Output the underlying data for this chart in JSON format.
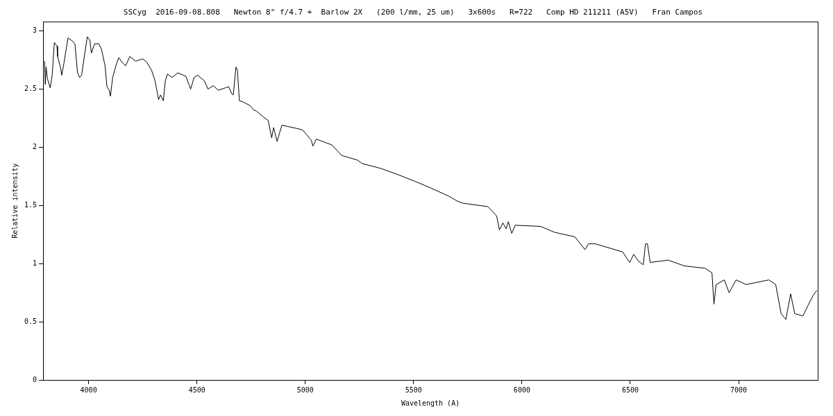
{
  "chart_data": {
    "type": "line",
    "title": "SSCyg  2016-09-08.808   Newton 8\" f/4.7 +  Barlow 2X   (200 l/mm, 25 um)   3x600s   R=722   Comp HD 211211 (A5V)   Fran Campos",
    "xlabel": "Wavelength (A)",
    "ylabel": "Relative intensity",
    "x": [
      3797,
      3800,
      3804,
      3810,
      3823,
      3832,
      3842,
      3854,
      3857,
      3870,
      3876,
      3886,
      3905,
      3921,
      3937,
      3949,
      3959,
      3968,
      3981,
      3994,
      4006,
      4013,
      4028,
      4047,
      4060,
      4076,
      4085,
      4095,
      4101,
      4111,
      4126,
      4139,
      4155,
      4171,
      4190,
      4218,
      4250,
      4269,
      4291,
      4307,
      4323,
      4332,
      4345,
      4354,
      4364,
      4386,
      4411,
      4449,
      4471,
      4487,
      4503,
      4535,
      4551,
      4576,
      4598,
      4630,
      4646,
      4661,
      4668,
      4680,
      4687,
      4696,
      4712,
      4744,
      4763,
      4775,
      4807,
      4829,
      4845,
      4854,
      4870,
      4892,
      4965,
      4987,
      5028,
      5035,
      5051,
      5123,
      5168,
      5240,
      5263,
      5345,
      5421,
      5516,
      5579,
      5662,
      5699,
      5725,
      5842,
      5864,
      5883,
      5896,
      5912,
      5927,
      5937,
      5953,
      5969,
      6086,
      6149,
      6244,
      6291,
      6307,
      6339,
      6465,
      6497,
      6516,
      6538,
      6560,
      6570,
      6579,
      6592,
      6674,
      6750,
      6845,
      6877,
      6886,
      6896,
      6934,
      6956,
      6988,
      7035,
      7139,
      7171,
      7196,
      7218,
      7240,
      7259,
      7297,
      7320,
      7345,
      7361
    ],
    "series": [
      {
        "color": "#000000",
        "values": [
          2.74,
          2.54,
          2.69,
          2.59,
          2.51,
          2.62,
          2.9,
          2.87,
          2.78,
          2.69,
          2.62,
          2.72,
          2.94,
          2.92,
          2.89,
          2.64,
          2.6,
          2.62,
          2.79,
          2.95,
          2.92,
          2.81,
          2.89,
          2.89,
          2.84,
          2.7,
          2.52,
          2.49,
          2.44,
          2.6,
          2.7,
          2.77,
          2.73,
          2.7,
          2.78,
          2.74,
          2.76,
          2.73,
          2.66,
          2.57,
          2.41,
          2.45,
          2.4,
          2.57,
          2.63,
          2.6,
          2.64,
          2.61,
          2.5,
          2.6,
          2.62,
          2.57,
          2.5,
          2.53,
          2.49,
          2.51,
          2.52,
          2.46,
          2.45,
          2.69,
          2.66,
          2.4,
          2.39,
          2.36,
          2.32,
          2.31,
          2.26,
          2.23,
          2.08,
          2.17,
          2.05,
          2.19,
          2.16,
          2.15,
          2.06,
          2.01,
          2.07,
          2.02,
          1.93,
          1.89,
          1.86,
          1.82,
          1.77,
          1.7,
          1.65,
          1.58,
          1.54,
          1.52,
          1.49,
          1.45,
          1.41,
          1.29,
          1.35,
          1.3,
          1.36,
          1.26,
          1.33,
          1.32,
          1.27,
          1.23,
          1.12,
          1.17,
          1.17,
          1.1,
          1.01,
          1.08,
          1.02,
          0.99,
          1.17,
          1.17,
          1.01,
          1.03,
          0.98,
          0.96,
          0.92,
          0.65,
          0.82,
          0.86,
          0.75,
          0.86,
          0.82,
          0.86,
          0.82,
          0.57,
          0.52,
          0.74,
          0.57,
          0.55,
          0.64,
          0.73,
          0.77
        ]
      }
    ],
    "xlim": [
      3790,
      7365
    ],
    "xticks": [
      4000,
      4500,
      5000,
      5500,
      6000,
      6500,
      7000
    ],
    "ylim": [
      0,
      3.08
    ],
    "yticks": [
      0,
      0.5,
      1,
      1.5,
      2,
      2.5,
      3
    ],
    "grid": false,
    "legend": false,
    "marker": "none",
    "line_style": "solid"
  }
}
